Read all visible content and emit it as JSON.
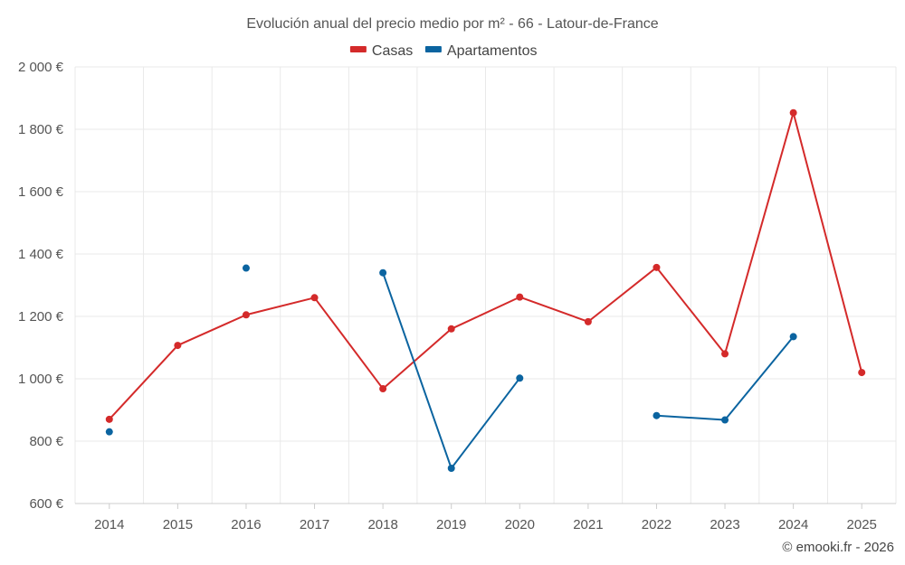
{
  "chart_data": {
    "type": "line",
    "title": "Evolución anual del precio medio por m² - 66 - Latour-de-France",
    "categories": [
      "2014",
      "2015",
      "2016",
      "2017",
      "2018",
      "2019",
      "2020",
      "2021",
      "2022",
      "2023",
      "2024",
      "2025"
    ],
    "ylim": [
      600,
      2000
    ],
    "yticks": [
      600,
      800,
      1000,
      1200,
      1400,
      1600,
      1800,
      2000
    ],
    "ytick_labels": [
      "600 €",
      "800 €",
      "1 000 €",
      "1 200 €",
      "1 400 €",
      "1 600 €",
      "1 800 €",
      "2 000 €"
    ],
    "grid": true,
    "legend_position": "top-center",
    "series": [
      {
        "name": "Casas",
        "color": "#d42a2a",
        "values": [
          870,
          1107,
          1205,
          1260,
          968,
          1160,
          1262,
          1183,
          1357,
          1080,
          1853,
          1020
        ]
      },
      {
        "name": "Apartamentos",
        "color": "#0b64a0",
        "values": [
          830,
          null,
          1355,
          null,
          1340,
          713,
          1002,
          null,
          882,
          868,
          1135,
          null
        ]
      }
    ]
  },
  "credit": "© emooki.fr - 2026"
}
